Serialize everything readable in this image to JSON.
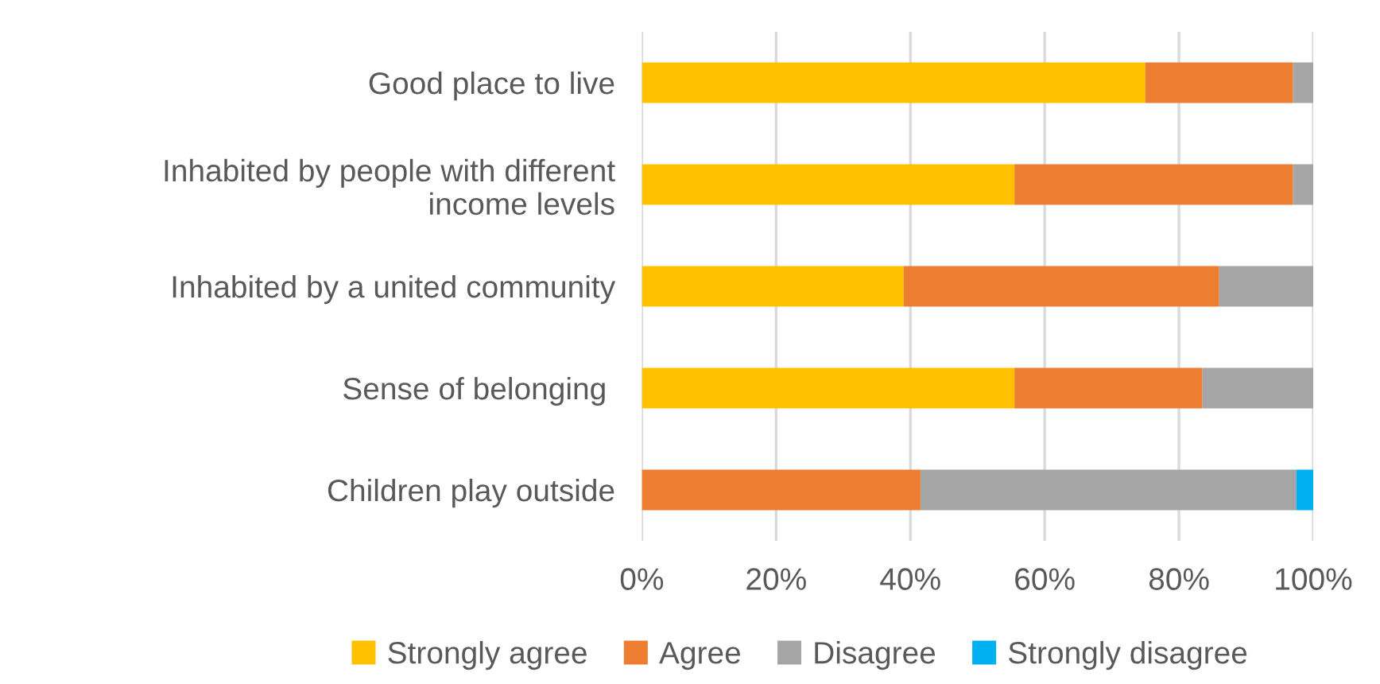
{
  "chart_data": {
    "type": "bar",
    "orientation": "horizontal",
    "stacked": true,
    "categories": [
      "Good place to live",
      "Inhabited by people with different\nincome levels",
      "Inhabited by a united community",
      "Sense of belonging ",
      "Children play outside"
    ],
    "series": [
      {
        "name": "Strongly agree",
        "color": "#ffc000",
        "values": [
          75,
          55.5,
          39,
          55.5,
          0
        ]
      },
      {
        "name": "Agree",
        "color": "#ed7d31",
        "values": [
          22,
          41.5,
          47,
          28,
          41.5
        ]
      },
      {
        "name": "Disagree",
        "color": "#a5a5a5",
        "values": [
          3,
          3,
          14,
          16.5,
          56
        ]
      },
      {
        "name": "Strongly disagree",
        "color": "#00b0f0",
        "values": [
          0,
          0,
          0,
          0,
          2.5
        ]
      }
    ],
    "xlim": [
      0,
      100
    ],
    "xticks": [
      {
        "value": 0,
        "label": "0%"
      },
      {
        "value": 20,
        "label": "20%"
      },
      {
        "value": 40,
        "label": "40%"
      },
      {
        "value": 60,
        "label": "60%"
      },
      {
        "value": 80,
        "label": "80%"
      },
      {
        "value": 100,
        "label": "100%"
      }
    ],
    "grid": "x",
    "legend": "bottom"
  }
}
